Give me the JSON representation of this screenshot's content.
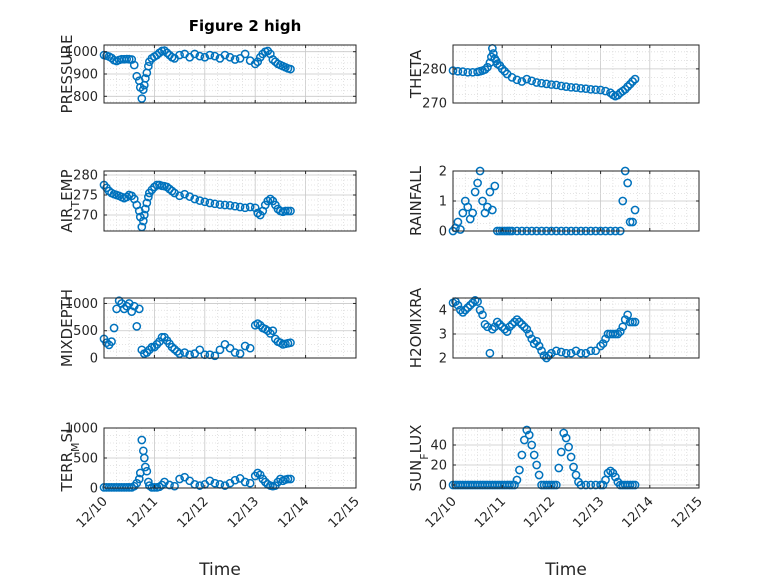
{
  "figure": {
    "title": "Figure 2 high"
  },
  "chart_data": [
    {
      "type": "scatter",
      "marker": "circle",
      "grid": true,
      "ylabel": "PRESSURE",
      "xlim": [
        "12/10",
        "12/15"
      ],
      "ylim": [
        770,
        1030
      ],
      "yticks": [
        "800",
        "900",
        "1000"
      ],
      "x": [
        0.0,
        0.05,
        0.1,
        0.15,
        0.2,
        0.25,
        0.3,
        0.35,
        0.4,
        0.45,
        0.5,
        0.55,
        0.6,
        0.65,
        0.7,
        0.72,
        0.75,
        0.78,
        0.8,
        0.82,
        0.85,
        0.88,
        0.9,
        0.95,
        1.0,
        1.05,
        1.1,
        1.15,
        1.2,
        1.25,
        1.3,
        1.35,
        1.4,
        1.5,
        1.6,
        1.7,
        1.8,
        1.9,
        2.0,
        2.1,
        2.2,
        2.3,
        2.4,
        2.5,
        2.6,
        2.7,
        2.8,
        2.9,
        3.0,
        3.05,
        3.1,
        3.15,
        3.2,
        3.25,
        3.3,
        3.35,
        3.4,
        3.45,
        3.5,
        3.55,
        3.6,
        3.65,
        3.7
      ],
      "y": [
        985,
        982,
        978,
        972,
        962,
        958,
        963,
        966,
        966,
        967,
        966,
        965,
        940,
        890,
        870,
        840,
        790,
        830,
        850,
        880,
        905,
        935,
        955,
        970,
        978,
        985,
        995,
        1003,
        1005,
        995,
        985,
        975,
        970,
        985,
        990,
        975,
        990,
        980,
        975,
        985,
        980,
        970,
        985,
        975,
        965,
        970,
        990,
        960,
        945,
        955,
        975,
        990,
        1000,
        1003,
        990,
        965,
        955,
        945,
        940,
        935,
        930,
        925,
        922
      ]
    },
    {
      "type": "scatter",
      "marker": "circle",
      "grid": true,
      "ylabel": "THETA",
      "xlim": [
        "12/10",
        "12/15"
      ],
      "ylim": [
        270,
        287
      ],
      "yticks": [
        "270",
        "280"
      ],
      "x": [
        0.0,
        0.1,
        0.2,
        0.3,
        0.4,
        0.5,
        0.55,
        0.6,
        0.65,
        0.7,
        0.75,
        0.78,
        0.8,
        0.82,
        0.85,
        0.88,
        0.9,
        0.95,
        1.0,
        1.05,
        1.1,
        1.2,
        1.3,
        1.4,
        1.5,
        1.6,
        1.7,
        1.8,
        1.9,
        2.0,
        2.1,
        2.2,
        2.3,
        2.4,
        2.5,
        2.6,
        2.7,
        2.8,
        2.9,
        3.0,
        3.1,
        3.2,
        3.25,
        3.3,
        3.35,
        3.4,
        3.45,
        3.5,
        3.55,
        3.6,
        3.65,
        3.7
      ],
      "y": [
        279.5,
        279.3,
        279.2,
        279.0,
        279.0,
        279.1,
        279.3,
        279.5,
        279.8,
        280.5,
        281.8,
        283.5,
        286.0,
        284.5,
        283.0,
        282.3,
        281.5,
        281.0,
        280.0,
        279.3,
        278.5,
        277.5,
        276.8,
        276.3,
        277.0,
        276.5,
        276.0,
        275.8,
        275.6,
        275.4,
        275.3,
        275.0,
        274.8,
        274.6,
        274.5,
        274.3,
        274.2,
        274.0,
        273.9,
        273.8,
        273.5,
        273.0,
        272.4,
        272.0,
        272.3,
        273.0,
        273.5,
        274.0,
        274.8,
        275.5,
        276.3,
        277.0
      ]
    },
    {
      "type": "scatter",
      "marker": "circle",
      "grid": true,
      "ylabel": "AIR_TEMP",
      "xlim": [
        "12/10",
        "12/15"
      ],
      "ylim": [
        266,
        281
      ],
      "yticks": [
        "270",
        "275",
        "280"
      ],
      "x": [
        0.0,
        0.05,
        0.1,
        0.15,
        0.2,
        0.25,
        0.3,
        0.35,
        0.4,
        0.45,
        0.5,
        0.55,
        0.6,
        0.65,
        0.7,
        0.72,
        0.75,
        0.78,
        0.8,
        0.82,
        0.85,
        0.88,
        0.9,
        0.95,
        1.0,
        1.05,
        1.1,
        1.15,
        1.2,
        1.25,
        1.3,
        1.35,
        1.4,
        1.5,
        1.6,
        1.7,
        1.8,
        1.9,
        2.0,
        2.1,
        2.2,
        2.3,
        2.4,
        2.5,
        2.6,
        2.7,
        2.8,
        2.9,
        3.0,
        3.05,
        3.1,
        3.15,
        3.2,
        3.25,
        3.3,
        3.35,
        3.4,
        3.45,
        3.5,
        3.55,
        3.6,
        3.65,
        3.7
      ],
      "y": [
        277.5,
        276.8,
        276.0,
        275.5,
        275.2,
        275.0,
        274.8,
        274.5,
        274.2,
        274.5,
        275.0,
        274.8,
        274.0,
        272.5,
        271.0,
        269.5,
        267.0,
        268.5,
        270.0,
        271.5,
        273.0,
        274.5,
        275.5,
        276.3,
        277.0,
        277.5,
        277.5,
        277.3,
        277.2,
        277.0,
        276.5,
        276.0,
        275.5,
        274.8,
        275.2,
        274.6,
        274.0,
        273.6,
        273.3,
        273.0,
        272.8,
        272.6,
        272.5,
        272.4,
        272.2,
        272.0,
        271.8,
        272.0,
        271.8,
        270.5,
        270.0,
        271.0,
        272.5,
        273.5,
        274.0,
        273.5,
        272.5,
        271.5,
        271.0,
        270.8,
        271.0,
        271.0,
        271.0
      ]
    },
    {
      "type": "scatter",
      "marker": "circle",
      "grid": true,
      "ylabel": "RAINFALL",
      "xlim": [
        "12/10",
        "12/15"
      ],
      "ylim": [
        0,
        2
      ],
      "yticks": [
        "0",
        "1",
        "2"
      ],
      "x": [
        0.0,
        0.05,
        0.1,
        0.15,
        0.2,
        0.25,
        0.3,
        0.35,
        0.4,
        0.45,
        0.5,
        0.55,
        0.6,
        0.65,
        0.7,
        0.75,
        0.8,
        0.85,
        0.9,
        0.95,
        1.0,
        1.05,
        1.1,
        1.15,
        1.2,
        1.3,
        1.4,
        1.5,
        1.6,
        1.7,
        1.8,
        1.9,
        2.0,
        2.1,
        2.2,
        2.3,
        2.4,
        2.5,
        2.6,
        2.7,
        2.8,
        2.9,
        3.0,
        3.1,
        3.2,
        3.3,
        3.4,
        3.45,
        3.5,
        3.55,
        3.6,
        3.65,
        3.7
      ],
      "y": [
        0,
        0.1,
        0.3,
        0.05,
        0.6,
        1.0,
        0.8,
        0.4,
        0.6,
        1.3,
        1.6,
        2.0,
        1.0,
        0.6,
        0.8,
        1.3,
        0.7,
        1.5,
        0,
        0,
        0,
        0,
        0,
        0,
        0,
        0,
        0,
        0,
        0,
        0,
        0,
        0,
        0,
        0,
        0,
        0,
        0,
        0,
        0,
        0,
        0,
        0,
        0,
        0,
        0,
        0,
        0,
        1.0,
        2.0,
        1.6,
        0.3,
        0.3,
        0.7
      ]
    },
    {
      "type": "scatter",
      "marker": "circle",
      "grid": true,
      "ylabel": "MIXDEPTH",
      "xlim": [
        "12/10",
        "12/15"
      ],
      "ylim": [
        0,
        1100
      ],
      "yticks": [
        "0",
        "500",
        "1000"
      ],
      "x": [
        0.0,
        0.05,
        0.1,
        0.15,
        0.2,
        0.25,
        0.3,
        0.35,
        0.4,
        0.45,
        0.5,
        0.55,
        0.6,
        0.65,
        0.7,
        0.75,
        0.8,
        0.85,
        0.9,
        0.95,
        1.0,
        1.05,
        1.1,
        1.15,
        1.2,
        1.25,
        1.3,
        1.35,
        1.4,
        1.45,
        1.5,
        1.6,
        1.7,
        1.8,
        1.9,
        2.0,
        2.1,
        2.2,
        2.3,
        2.4,
        2.5,
        2.6,
        2.7,
        2.8,
        2.9,
        3.0,
        3.05,
        3.1,
        3.15,
        3.2,
        3.25,
        3.3,
        3.35,
        3.4,
        3.45,
        3.5,
        3.55,
        3.6,
        3.65,
        3.7
      ],
      "y": [
        350,
        280,
        240,
        300,
        550,
        900,
        1050,
        1000,
        900,
        950,
        1000,
        850,
        950,
        580,
        900,
        150,
        80,
        100,
        150,
        200,
        200,
        250,
        300,
        380,
        380,
        320,
        260,
        200,
        160,
        120,
        80,
        100,
        60,
        80,
        150,
        60,
        60,
        40,
        150,
        250,
        180,
        100,
        80,
        220,
        180,
        600,
        630,
        600,
        550,
        530,
        500,
        450,
        500,
        350,
        300,
        280,
        250,
        260,
        270,
        280
      ]
    },
    {
      "type": "scatter",
      "marker": "circle",
      "grid": true,
      "ylabel": "H2OMIXRA",
      "xlim": [
        "12/10",
        "12/15"
      ],
      "ylim": [
        2,
        4.5
      ],
      "yticks": [
        "2",
        "3",
        "4"
      ],
      "x": [
        0.0,
        0.05,
        0.1,
        0.15,
        0.2,
        0.25,
        0.3,
        0.35,
        0.4,
        0.45,
        0.5,
        0.55,
        0.6,
        0.65,
        0.7,
        0.75,
        0.8,
        0.85,
        0.9,
        0.95,
        1.0,
        1.05,
        1.1,
        1.15,
        1.2,
        1.25,
        1.3,
        1.35,
        1.4,
        1.45,
        1.5,
        1.55,
        1.6,
        1.65,
        1.7,
        1.75,
        1.8,
        1.85,
        1.9,
        1.95,
        2.0,
        2.1,
        2.2,
        2.3,
        2.4,
        2.5,
        2.6,
        2.7,
        2.8,
        2.9,
        3.0,
        3.05,
        3.1,
        3.15,
        3.2,
        3.25,
        3.3,
        3.35,
        3.4,
        3.45,
        3.5,
        3.55,
        3.6,
        3.65,
        3.7
      ],
      "y": [
        4.3,
        4.35,
        4.2,
        4.0,
        3.9,
        4.0,
        4.1,
        4.2,
        4.3,
        4.4,
        4.35,
        4.0,
        3.8,
        3.4,
        3.3,
        2.2,
        3.2,
        3.3,
        3.5,
        3.4,
        3.3,
        3.2,
        3.1,
        3.3,
        3.4,
        3.5,
        3.6,
        3.5,
        3.4,
        3.3,
        3.2,
        3.0,
        2.8,
        2.6,
        2.7,
        2.5,
        2.3,
        2.1,
        2.0,
        2.1,
        2.2,
        2.3,
        2.25,
        2.2,
        2.2,
        2.3,
        2.2,
        2.2,
        2.3,
        2.3,
        2.5,
        2.6,
        2.8,
        3.0,
        3.0,
        3.0,
        3.0,
        3.0,
        3.1,
        3.3,
        3.6,
        3.8,
        3.5,
        3.5,
        3.5
      ]
    },
    {
      "type": "scatter",
      "marker": "circle",
      "grid": true,
      "ylabel": "TERR_MSL",
      "xlim": [
        "12/10",
        "12/15"
      ],
      "ylim": [
        0,
        1000
      ],
      "yticks": [
        "0",
        "500",
        "1000"
      ],
      "xticks": [
        "12/10",
        "12/11",
        "12/12",
        "12/13",
        "12/14",
        "12/15"
      ],
      "xlabel": "Time",
      "x": [
        0.0,
        0.05,
        0.1,
        0.15,
        0.2,
        0.25,
        0.3,
        0.35,
        0.4,
        0.45,
        0.5,
        0.55,
        0.6,
        0.65,
        0.7,
        0.72,
        0.75,
        0.78,
        0.8,
        0.82,
        0.85,
        0.88,
        0.9,
        0.95,
        1.0,
        1.05,
        1.1,
        1.15,
        1.2,
        1.3,
        1.4,
        1.5,
        1.6,
        1.7,
        1.8,
        1.9,
        2.0,
        2.1,
        2.2,
        2.3,
        2.4,
        2.5,
        2.6,
        2.7,
        2.8,
        2.9,
        3.0,
        3.05,
        3.1,
        3.15,
        3.2,
        3.25,
        3.3,
        3.35,
        3.4,
        3.45,
        3.5,
        3.55,
        3.6,
        3.65,
        3.7
      ],
      "y": [
        10,
        10,
        10,
        10,
        10,
        10,
        10,
        10,
        10,
        10,
        10,
        10,
        30,
        80,
        150,
        250,
        800,
        620,
        500,
        350,
        280,
        100,
        40,
        10,
        10,
        10,
        20,
        50,
        100,
        50,
        30,
        150,
        180,
        120,
        60,
        40,
        60,
        120,
        80,
        60,
        40,
        80,
        130,
        160,
        100,
        80,
        200,
        250,
        220,
        150,
        100,
        60,
        40,
        30,
        40,
        100,
        150,
        120,
        140,
        150,
        150
      ]
    },
    {
      "type": "scatter",
      "marker": "circle",
      "grid": true,
      "ylabel": "SUN_FLUX",
      "xlim": [
        "12/10",
        "12/15"
      ],
      "ylim": [
        -3,
        57
      ],
      "yticks": [
        "0",
        "20",
        "40"
      ],
      "xticks": [
        "12/10",
        "12/11",
        "12/12",
        "12/13",
        "12/14",
        "12/15"
      ],
      "xlabel": "Time",
      "x": [
        0.0,
        0.05,
        0.1,
        0.15,
        0.2,
        0.25,
        0.3,
        0.35,
        0.4,
        0.45,
        0.5,
        0.55,
        0.6,
        0.65,
        0.7,
        0.75,
        0.8,
        0.85,
        0.9,
        0.95,
        1.0,
        1.05,
        1.1,
        1.15,
        1.2,
        1.25,
        1.3,
        1.35,
        1.4,
        1.45,
        1.5,
        1.55,
        1.6,
        1.65,
        1.7,
        1.75,
        1.8,
        1.85,
        1.9,
        1.95,
        2.0,
        2.05,
        2.1,
        2.15,
        2.2,
        2.25,
        2.3,
        2.35,
        2.4,
        2.45,
        2.5,
        2.55,
        2.6,
        2.7,
        2.8,
        2.9,
        3.0,
        3.05,
        3.1,
        3.15,
        3.2,
        3.25,
        3.3,
        3.35,
        3.4,
        3.45,
        3.5,
        3.55,
        3.6,
        3.65,
        3.7
      ],
      "y": [
        0,
        0,
        0,
        0,
        0,
        0,
        0,
        0,
        0,
        0,
        0,
        0,
        0,
        0,
        0,
        0,
        0,
        0,
        0,
        0,
        0,
        0,
        0,
        0,
        0,
        0,
        5,
        15,
        30,
        45,
        55,
        50,
        40,
        30,
        20,
        10,
        0,
        0,
        0,
        0,
        0,
        0,
        0,
        17,
        33,
        52,
        47,
        38,
        28,
        18,
        10,
        3,
        0,
        0,
        0,
        0,
        0,
        0,
        5,
        12,
        14,
        12,
        8,
        3,
        0,
        0,
        0,
        0,
        0,
        0,
        0
      ]
    }
  ]
}
